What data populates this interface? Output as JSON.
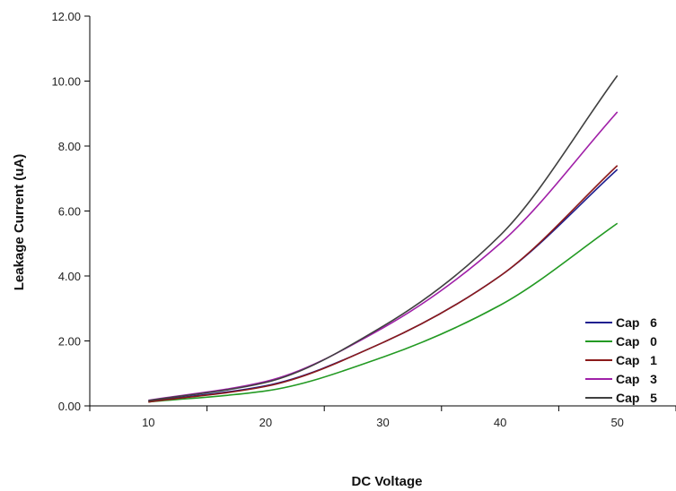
{
  "chart_data": {
    "type": "line",
    "title": "",
    "xlabel": "DC Voltage",
    "ylabel": "Leakage Current (uA)",
    "xlim": [
      5,
      55
    ],
    "ylim": [
      0,
      12
    ],
    "xticks": [
      10,
      20,
      30,
      40,
      50
    ],
    "yticks": [
      0,
      2,
      4,
      6,
      8,
      10,
      12
    ],
    "ytick_labels": [
      "0.00",
      "2.00",
      "4.00",
      "6.00",
      "8.00",
      "10.00",
      "12.00"
    ],
    "grid": false,
    "legend_position": "bottom-right",
    "x": [
      10,
      20,
      30,
      40,
      50
    ],
    "series": [
      {
        "name": "Cap   6",
        "color": "#1f1f8f",
        "values": [
          0.14,
          0.62,
          1.95,
          4.0,
          7.28
        ]
      },
      {
        "name": "Cap   0",
        "color": "#239a23",
        "values": [
          0.12,
          0.46,
          1.5,
          3.1,
          5.62
        ]
      },
      {
        "name": "Cap   1",
        "color": "#8b1a1a",
        "values": [
          0.12,
          0.6,
          1.95,
          4.0,
          7.4
        ]
      },
      {
        "name": "Cap   3",
        "color": "#a020a8",
        "values": [
          0.17,
          0.75,
          2.4,
          5.0,
          9.05
        ]
      },
      {
        "name": "Cap   5",
        "color": "#404040",
        "values": [
          0.16,
          0.72,
          2.45,
          5.25,
          10.17
        ]
      }
    ]
  }
}
